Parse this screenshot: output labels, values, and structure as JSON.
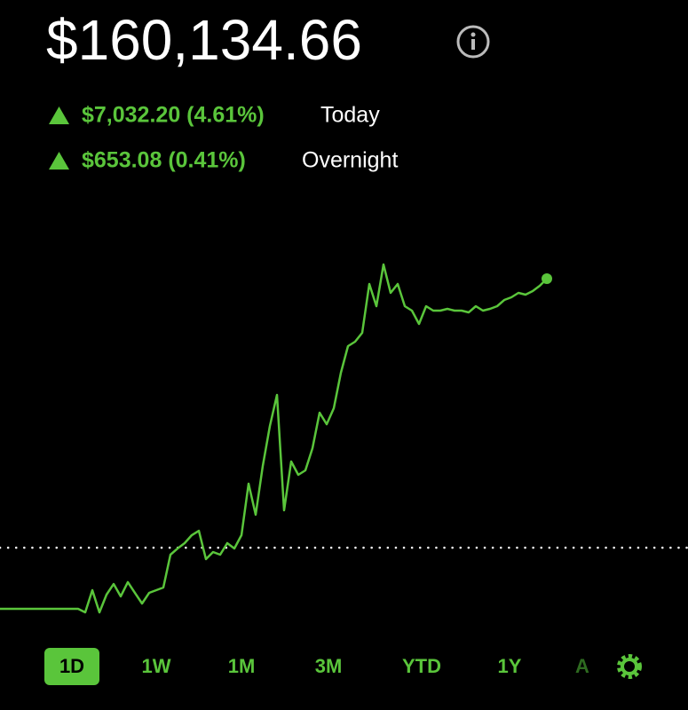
{
  "header": {
    "value": "$160,134.66",
    "changes": [
      {
        "amount": "$7,032.20 (4.61%)",
        "label": "Today"
      },
      {
        "amount": "$653.08 (0.41%)",
        "label": "Overnight"
      }
    ]
  },
  "chart_data": {
    "type": "line",
    "color": "#5ac53b",
    "ylim": [
      151180,
      161620
    ],
    "reference_line": 153102,
    "values": [
      151505,
      151505,
      151505,
      151505,
      151505,
      151505,
      151505,
      151505,
      151505,
      151505,
      151505,
      151505,
      151412,
      151992,
      151412,
      151876,
      152154,
      151830,
      152201,
      151922,
      151644,
      151922,
      151992,
      152062,
      152920,
      153082,
      153222,
      153430,
      153546,
      152804,
      152990,
      152920,
      153222,
      153082,
      153430,
      154776,
      153964,
      155240,
      156284,
      157096,
      154080,
      155356,
      155008,
      155124,
      155704,
      156632,
      156330,
      156748,
      157676,
      158372,
      158488,
      158720,
      159996,
      159416,
      160506,
      159764,
      159996,
      159416,
      159300,
      158952,
      159416,
      159300,
      159300,
      159346,
      159300,
      159300,
      159254,
      159416,
      159300,
      159346,
      159416,
      159578,
      159648,
      159764,
      159718,
      159810,
      159950,
      160135
    ]
  },
  "ranges": [
    "1D",
    "1W",
    "1M",
    "3M",
    "YTD",
    "1Y",
    "A"
  ],
  "selected_range": 0
}
